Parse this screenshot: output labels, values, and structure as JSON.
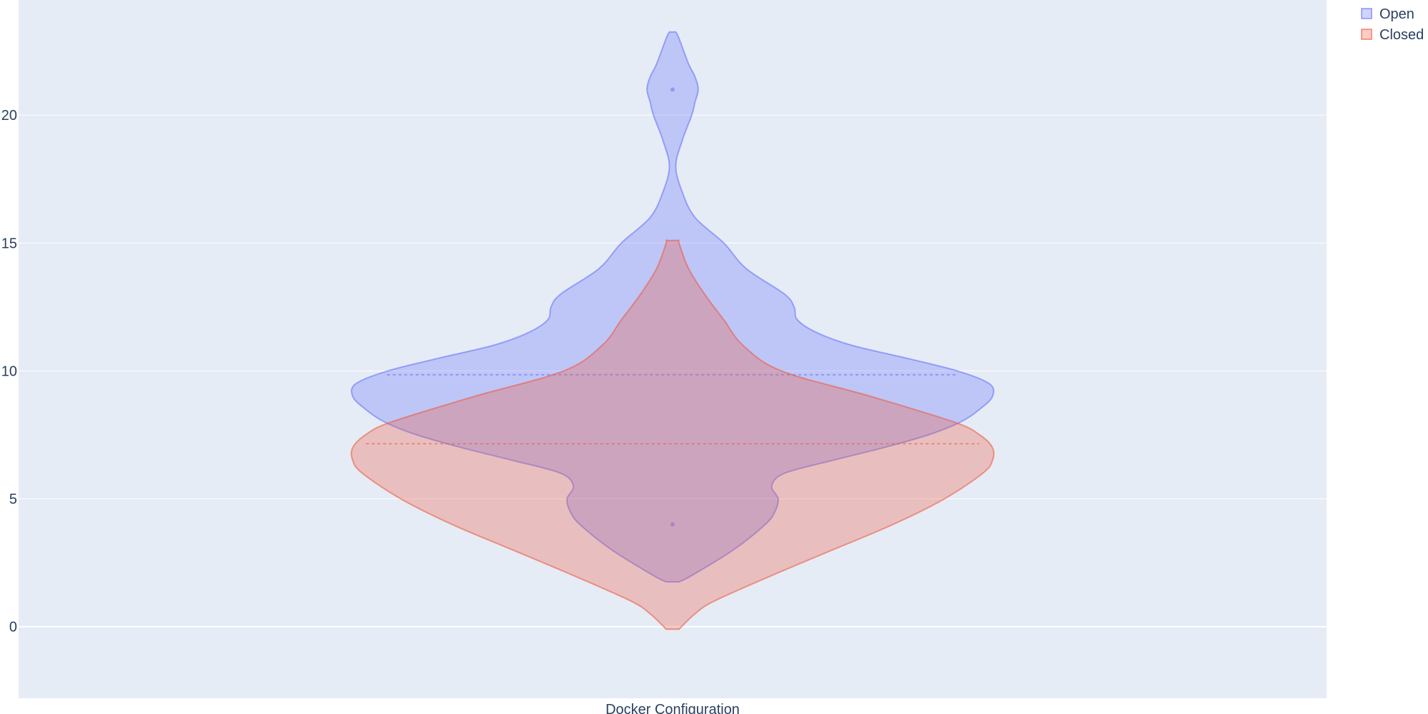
{
  "chart_data": {
    "type": "violin",
    "title": "",
    "xlabel": "",
    "ylabel": "",
    "categories": [
      "Docker Configuration"
    ],
    "ylim": [
      -2.8,
      24.5
    ],
    "yticks": [
      0,
      5,
      10,
      15,
      20
    ],
    "grid": true,
    "legend_position": "top-right",
    "series": [
      {
        "name": "Open",
        "color": "#636efa",
        "min": 1.75,
        "max": 23.25,
        "mean": 9.85,
        "outliers": [
          21,
          4
        ],
        "density": [
          [
            1.75,
            0.02
          ],
          [
            2.0,
            0.06
          ],
          [
            3.0,
            0.19
          ],
          [
            4.0,
            0.29
          ],
          [
            4.5,
            0.32
          ],
          [
            5.0,
            0.33
          ],
          [
            5.5,
            0.31
          ],
          [
            6.0,
            0.35
          ],
          [
            6.5,
            0.5
          ],
          [
            7.0,
            0.66
          ],
          [
            7.5,
            0.8
          ],
          [
            8.0,
            0.9
          ],
          [
            8.5,
            0.96
          ],
          [
            9.0,
            1.0
          ],
          [
            9.5,
            0.99
          ],
          [
            10.0,
            0.89
          ],
          [
            10.5,
            0.73
          ],
          [
            11.0,
            0.56
          ],
          [
            11.5,
            0.45
          ],
          [
            12.0,
            0.39
          ],
          [
            12.5,
            0.38
          ],
          [
            13.0,
            0.35
          ],
          [
            14.0,
            0.23
          ],
          [
            15.0,
            0.16
          ],
          [
            16.0,
            0.07
          ],
          [
            17.0,
            0.03
          ],
          [
            18.0,
            0.01
          ],
          [
            19.0,
            0.03
          ],
          [
            20.0,
            0.06
          ],
          [
            20.5,
            0.07
          ],
          [
            21.0,
            0.08
          ],
          [
            21.5,
            0.07
          ],
          [
            22.0,
            0.05
          ],
          [
            23.0,
            0.02
          ],
          [
            23.25,
            0.01
          ]
        ]
      },
      {
        "name": "Closed",
        "color": "#ef553b",
        "min": -0.1,
        "max": 15.1,
        "mean": 7.15,
        "outliers": [],
        "density": [
          [
            -0.1,
            0.02
          ],
          [
            0.5,
            0.07
          ],
          [
            1.0,
            0.13
          ],
          [
            2.0,
            0.31
          ],
          [
            3.0,
            0.5
          ],
          [
            4.0,
            0.69
          ],
          [
            5.0,
            0.85
          ],
          [
            6.0,
            0.97
          ],
          [
            6.5,
            1.0
          ],
          [
            7.0,
            1.0
          ],
          [
            7.5,
            0.96
          ],
          [
            8.0,
            0.88
          ],
          [
            9.0,
            0.62
          ],
          [
            10.0,
            0.34
          ],
          [
            11.0,
            0.22
          ],
          [
            12.0,
            0.16
          ],
          [
            13.0,
            0.1
          ],
          [
            14.0,
            0.05
          ],
          [
            15.0,
            0.02
          ],
          [
            15.1,
            0.02
          ]
        ]
      }
    ]
  }
}
